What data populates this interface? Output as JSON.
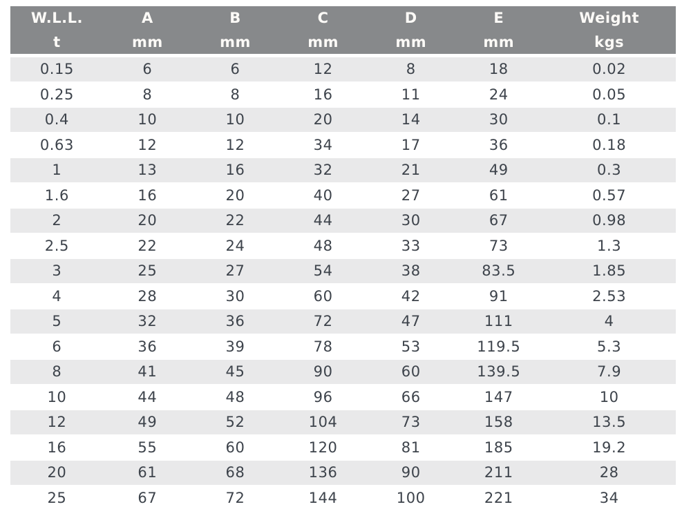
{
  "chart_data": {
    "type": "table",
    "columns": [
      {
        "label": "W.L.L.",
        "unit": "t"
      },
      {
        "label": "A",
        "unit": "mm"
      },
      {
        "label": "B",
        "unit": "mm"
      },
      {
        "label": "C",
        "unit": "mm"
      },
      {
        "label": "D",
        "unit": "mm"
      },
      {
        "label": "E",
        "unit": "mm"
      },
      {
        "label": "Weight",
        "unit": "kgs"
      }
    ],
    "rows": [
      [
        "0.15",
        "6",
        "6",
        "12",
        "8",
        "18",
        "0.02"
      ],
      [
        "0.25",
        "8",
        "8",
        "16",
        "11",
        "24",
        "0.05"
      ],
      [
        "0.4",
        "10",
        "10",
        "20",
        "14",
        "30",
        "0.1"
      ],
      [
        "0.63",
        "12",
        "12",
        "34",
        "17",
        "36",
        "0.18"
      ],
      [
        "1",
        "13",
        "16",
        "32",
        "21",
        "49",
        "0.3"
      ],
      [
        "1.6",
        "16",
        "20",
        "40",
        "27",
        "61",
        "0.57"
      ],
      [
        "2",
        "20",
        "22",
        "44",
        "30",
        "67",
        "0.98"
      ],
      [
        "2.5",
        "22",
        "24",
        "48",
        "33",
        "73",
        "1.3"
      ],
      [
        "3",
        "25",
        "27",
        "54",
        "38",
        "83.5",
        "1.85"
      ],
      [
        "4",
        "28",
        "30",
        "60",
        "42",
        "91",
        "2.53"
      ],
      [
        "5",
        "32",
        "36",
        "72",
        "47",
        "111",
        "4"
      ],
      [
        "6",
        "36",
        "39",
        "78",
        "53",
        "119.5",
        "5.3"
      ],
      [
        "8",
        "41",
        "45",
        "90",
        "60",
        "139.5",
        "7.9"
      ],
      [
        "10",
        "44",
        "48",
        "96",
        "66",
        "147",
        "10"
      ],
      [
        "12",
        "49",
        "52",
        "104",
        "73",
        "158",
        "13.5"
      ],
      [
        "16",
        "55",
        "60",
        "120",
        "81",
        "185",
        "19.2"
      ],
      [
        "20",
        "61",
        "68",
        "136",
        "90",
        "211",
        "28"
      ],
      [
        "25",
        "67",
        "72",
        "144",
        "100",
        "221",
        "34"
      ]
    ]
  },
  "colors": {
    "header_bg": "#87898b",
    "header_text": "#fcfaf7",
    "row_alt_bg": "#e9e9ea",
    "row_bg": "#ffffff",
    "cell_text": "#3d434b",
    "page_bg": "#ffffff"
  }
}
